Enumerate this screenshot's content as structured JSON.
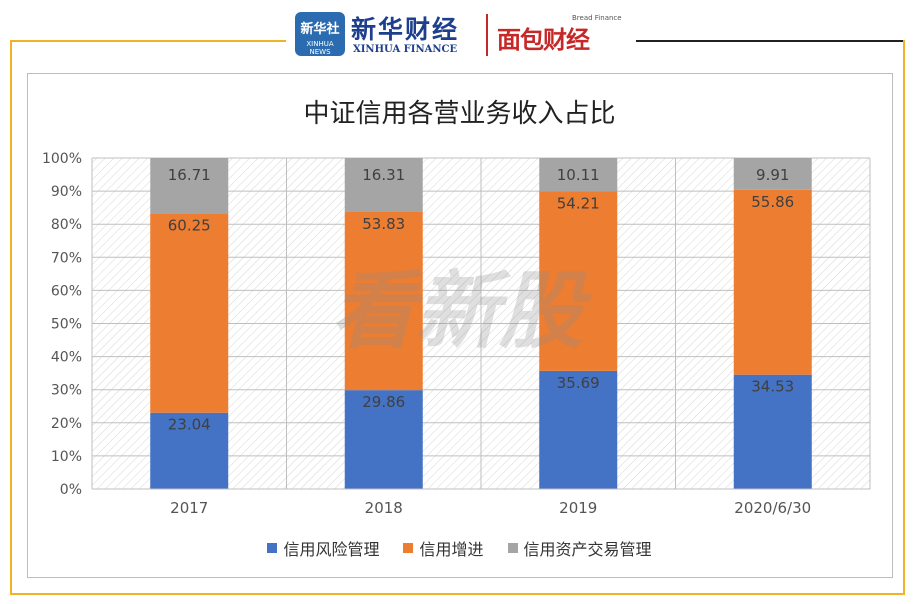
{
  "header": {
    "logo_box_cn": "新华社",
    "logo_box_en": "XINHUA NEWS",
    "brand_cn": "新华财经",
    "brand_en": "XINHUA FINANCE",
    "brand2_cn": "面包财经",
    "brand2_en": "Bread Finance"
  },
  "watermark": "看新股",
  "colors": {
    "frame": "#f0b323",
    "blue": "#4472c4",
    "orange": "#ed7d31",
    "gray": "#a5a5a5"
  },
  "chart_data": {
    "type": "bar",
    "stacked": true,
    "title": "中证信用各营业务收入占比",
    "categories": [
      "2017",
      "2018",
      "2019",
      "2020/6/30"
    ],
    "series": [
      {
        "name": "信用风险管理",
        "color": "#4472c4",
        "values": [
          23.04,
          29.86,
          35.69,
          34.53
        ],
        "labels": [
          "23.04",
          "29.86",
          "35.69",
          "34.53"
        ]
      },
      {
        "name": "信用增进",
        "color": "#ed7d31",
        "values": [
          60.25,
          53.83,
          54.21,
          55.86
        ],
        "labels": [
          "60.25",
          "53.83",
          "54.21",
          "55.86"
        ]
      },
      {
        "name": "信用资产交易管理",
        "color": "#a5a5a5",
        "values": [
          16.71,
          16.31,
          10.11,
          9.91
        ],
        "labels": [
          "16.71",
          "16.31",
          "10.11",
          "9.91"
        ]
      }
    ],
    "ylim": [
      0,
      100
    ],
    "yticks": [
      "0%",
      "10%",
      "20%",
      "30%",
      "40%",
      "50%",
      "60%",
      "70%",
      "80%",
      "90%",
      "100%"
    ],
    "grid": true,
    "legend": "bottom"
  }
}
